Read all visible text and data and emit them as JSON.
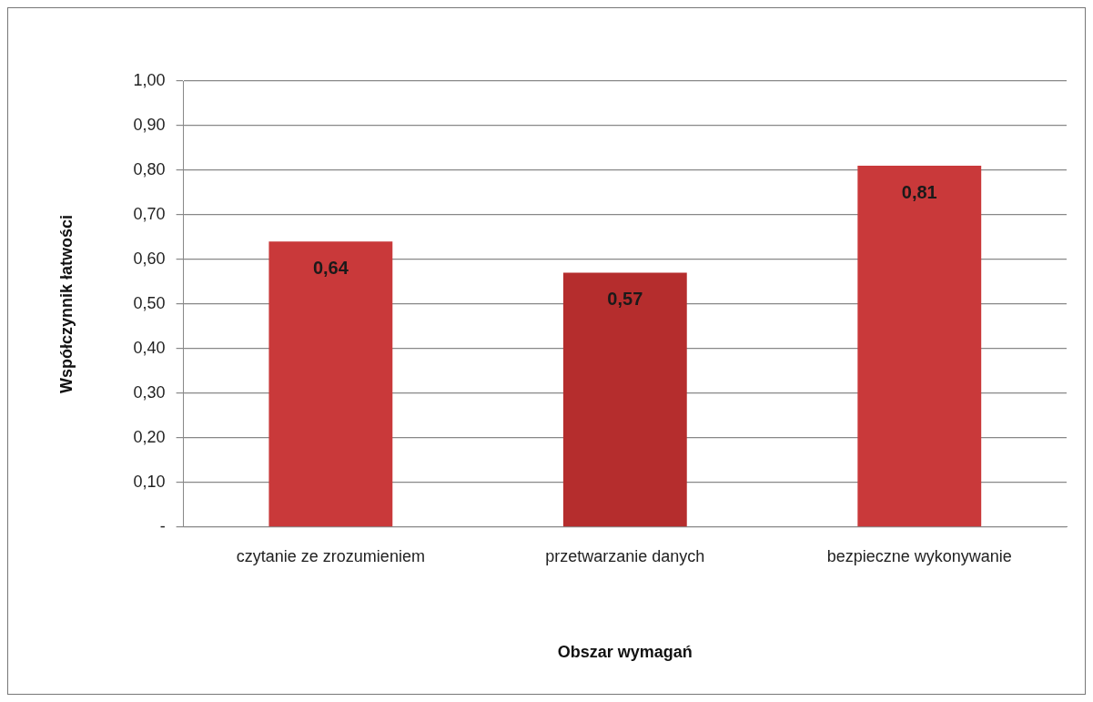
{
  "chart_data": {
    "type": "bar",
    "xlabel": "Obszar wymagań",
    "ylabel": "Współczynnik łatwości",
    "categories": [
      "czytanie ze zrozumieniem",
      "przetwarzanie danych",
      "bezpieczne wykonywanie"
    ],
    "values": [
      0.64,
      0.57,
      0.81
    ],
    "colors": [
      "#c9393a",
      "#b52d2d",
      "#c9393a"
    ],
    "value_labels": [
      "0,64",
      "0,57",
      "0,81"
    ],
    "ylim": [
      0,
      1
    ],
    "yticks": [
      {
        "value": 0,
        "label": "-"
      },
      {
        "value": 0.1,
        "label": "0,10"
      },
      {
        "value": 0.2,
        "label": "0,20"
      },
      {
        "value": 0.3,
        "label": "0,30"
      },
      {
        "value": 0.4,
        "label": "0,40"
      },
      {
        "value": 0.5,
        "label": "0,50"
      },
      {
        "value": 0.6,
        "label": "0,60"
      },
      {
        "value": 0.7,
        "label": "0,70"
      },
      {
        "value": 0.8,
        "label": "0,80"
      },
      {
        "value": 0.9,
        "label": "0,90"
      },
      {
        "value": 1,
        "label": "1,00"
      }
    ],
    "grid": "y",
    "legend": false
  }
}
